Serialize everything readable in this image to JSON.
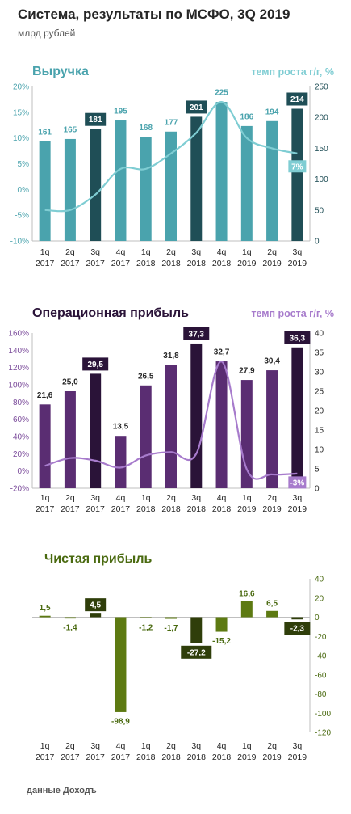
{
  "header": {
    "title": "Система, результаты по МСФО, 3Q 2019",
    "subtitle": "млрд рублей"
  },
  "footer": {
    "source": "данные Доходъ"
  },
  "categories": [
    [
      "1q",
      "2017"
    ],
    [
      "2q",
      "2017"
    ],
    [
      "3q",
      "2017"
    ],
    [
      "4q",
      "2017"
    ],
    [
      "1q",
      "2018"
    ],
    [
      "2q",
      "2018"
    ],
    [
      "3q",
      "2018"
    ],
    [
      "4q",
      "2018"
    ],
    [
      "1q",
      "2019"
    ],
    [
      "2q",
      "2019"
    ],
    [
      "3q",
      "2019"
    ]
  ],
  "chart_data": [
    {
      "type": "bar",
      "title": "Выручка",
      "growth_title": "темп роста г/г, %",
      "values": [
        161,
        165,
        181,
        195,
        168,
        177,
        201,
        225,
        186,
        194,
        214
      ],
      "labels": [
        "161",
        "165",
        "181",
        "195",
        "168",
        "177",
        "201",
        "225",
        "186",
        "194",
        "214"
      ],
      "highlighted": [
        false,
        false,
        true,
        false,
        false,
        false,
        true,
        false,
        false,
        false,
        true
      ],
      "bar_ylim": [
        0,
        250
      ],
      "bar_ticks": [
        "0",
        "50",
        "100",
        "150",
        "200",
        "250"
      ],
      "growth_series": {
        "values": [
          -4,
          -4,
          -1,
          4,
          4,
          7,
          11,
          17,
          10,
          8,
          7
        ],
        "ylim": [
          -10,
          20
        ],
        "ticks": [
          "-10%",
          "-5%",
          "0%",
          "5%",
          "10%",
          "15%",
          "20%"
        ],
        "last_label": "7%"
      },
      "colors": {
        "bar": "#4aa3ad",
        "highlight": "#1f4e56",
        "line": "#7fcdd3",
        "title": "#4aa3ad",
        "growth_title": "#7fcdd3",
        "bar_axis": "#1f4e56",
        "growth_axis": "#4aa3ad"
      }
    },
    {
      "type": "bar",
      "title": "Операционная прибыль",
      "growth_title": "темп роста г/г, %",
      "values": [
        21.6,
        25.0,
        29.5,
        13.5,
        26.5,
        31.8,
        37.3,
        32.7,
        27.9,
        30.4,
        36.3
      ],
      "labels": [
        "21,6",
        "25,0",
        "29,5",
        "13,5",
        "26,5",
        "31,8",
        "37,3",
        "32,7",
        "27,9",
        "30,4",
        "36,3"
      ],
      "highlighted": [
        false,
        false,
        true,
        false,
        false,
        false,
        true,
        false,
        false,
        false,
        true
      ],
      "bar_ylim": [
        0,
        40
      ],
      "bar_ticks": [
        "0",
        "5",
        "10",
        "15",
        "20",
        "25",
        "30",
        "35",
        "40"
      ],
      "growth_series": {
        "values": [
          6,
          15,
          12,
          4,
          18,
          22,
          20,
          127,
          2,
          -4,
          -3
        ],
        "ylim": [
          -20,
          160
        ],
        "ticks": [
          "-20%",
          "0%",
          "20%",
          "40%",
          "60%",
          "80%",
          "100%",
          "120%",
          "140%",
          "160%"
        ],
        "last_label": "-3%"
      },
      "colors": {
        "bar": "#5a2d72",
        "highlight": "#2a1338",
        "line": "#a77bcc",
        "title": "#2a1338",
        "growth_title": "#a77bcc",
        "bar_axis": "#262626",
        "growth_axis": "#7a4a9a"
      }
    },
    {
      "type": "bar",
      "title": "Чистая прибыль",
      "values": [
        1.5,
        -1.4,
        4.5,
        -98.9,
        -1.2,
        -1.7,
        -27.2,
        -15.2,
        16.6,
        6.5,
        -2.3
      ],
      "labels": [
        "1,5",
        "-1,4",
        "4,5",
        "-98,9",
        "-1,2",
        "-1,7",
        "-27,2",
        "-15,2",
        "16,6",
        "6,5",
        "-2,3"
      ],
      "highlighted": [
        false,
        false,
        true,
        false,
        false,
        false,
        true,
        false,
        false,
        false,
        true
      ],
      "bar_ylim": [
        -120,
        40
      ],
      "bar_ticks": [
        "-120",
        "-100",
        "-80",
        "-60",
        "-40",
        "-20",
        "0",
        "20",
        "40"
      ],
      "colors": {
        "bar": "#5d7a12",
        "highlight": "#2f3e0a",
        "title": "#4a6a10",
        "bar_axis": "#4a6a10"
      }
    }
  ]
}
